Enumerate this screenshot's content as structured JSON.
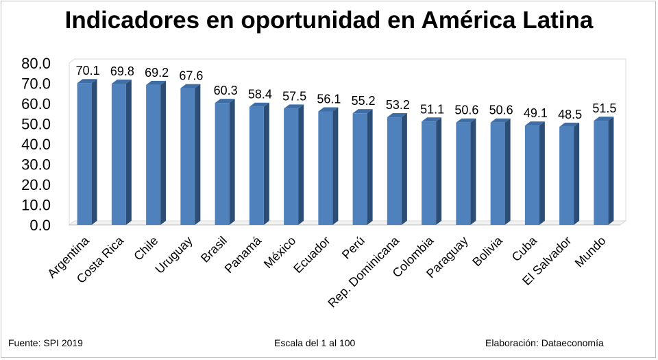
{
  "chart_data": {
    "type": "bar",
    "title": "Indicadores en oportunidad en América Latina",
    "categories": [
      "Argentina",
      "Costa Rica",
      "Chile",
      "Uruguay",
      "Brasil",
      "Panamá",
      "México",
      "Ecuador",
      "Perú",
      "Rep. Dominicana",
      "Colombia",
      "Paraguay",
      "Bolivia",
      "Cuba",
      "El Salvador",
      "Mundo"
    ],
    "values": [
      70.1,
      69.8,
      69.2,
      67.6,
      60.3,
      58.4,
      57.5,
      56.1,
      55.2,
      53.2,
      51.1,
      50.6,
      50.6,
      49.1,
      48.5,
      51.5
    ],
    "value_labels": [
      "70.1",
      "69.8",
      "69.2",
      "67.6",
      "60.3",
      "58.4",
      "57.5",
      "56.1",
      "55.2",
      "53.2",
      "51.1",
      "50.6",
      "50.6",
      "49.1",
      "48.5",
      "51.5"
    ],
    "yticks": [
      "0.0",
      "10.0",
      "20.0",
      "30.0",
      "40.0",
      "50.0",
      "60.0",
      "70.0",
      "80.0"
    ],
    "ylim": [
      0,
      80
    ],
    "grid": false,
    "style": "3d-column",
    "bar_color": "#4f81bd",
    "bar_side_color": "#2c4d75",
    "bar_top_color": "#3f6ea6"
  },
  "footer": {
    "source": "Fuente: SPI 2019",
    "scale": "Escala del 1 al 100",
    "credit": "Elaboración: Dataeconomía"
  }
}
